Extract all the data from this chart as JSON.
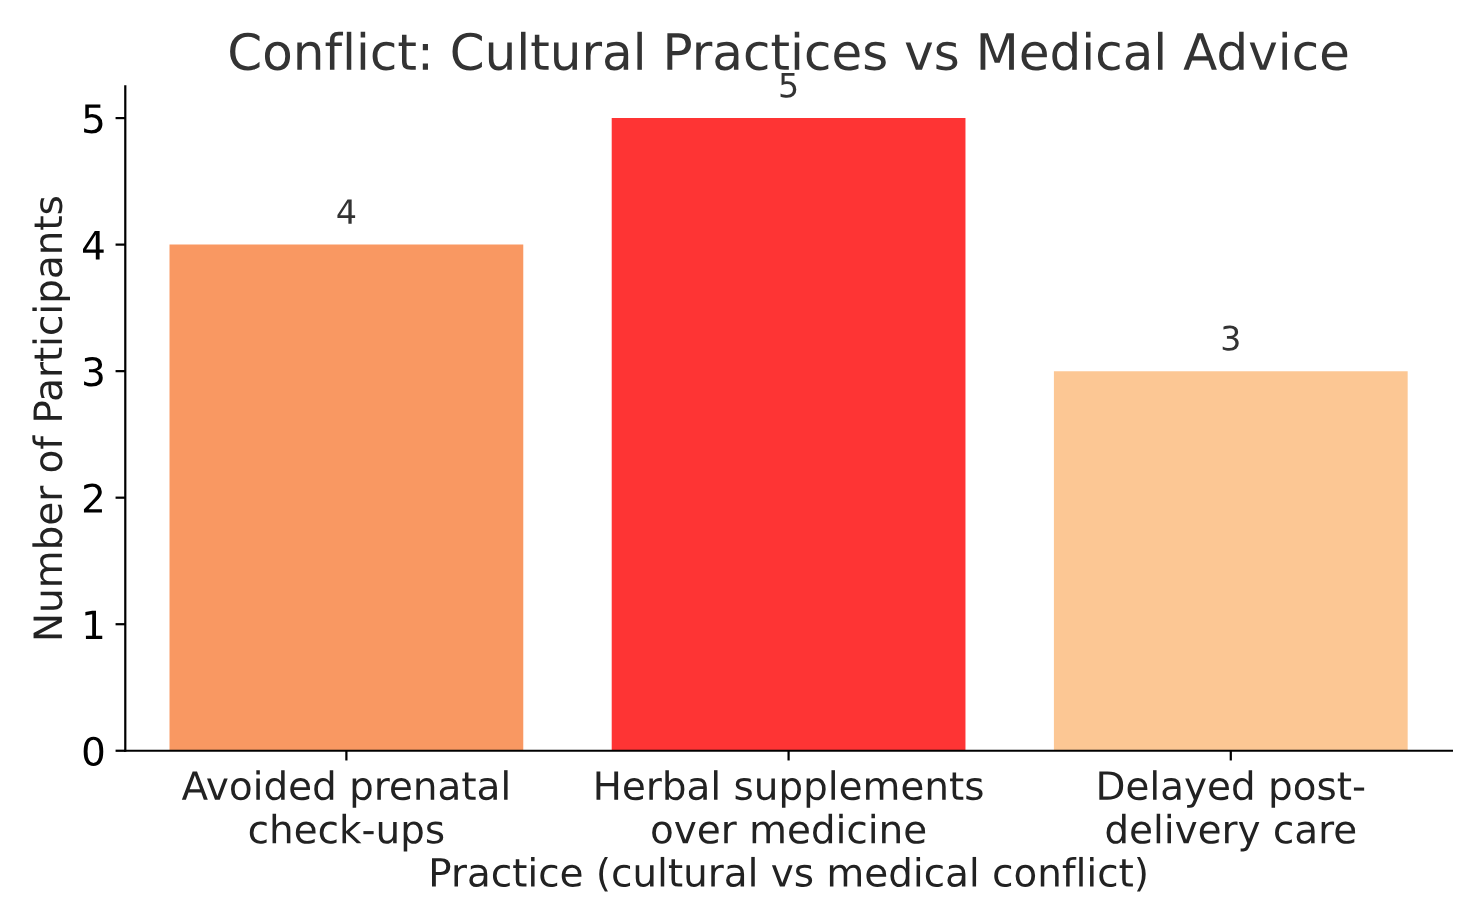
{
  "chart_data": {
    "type": "bar",
    "title": "Conflict: Cultural Practices vs Medical Advice",
    "xlabel": "Practice (cultural vs medical conflict)",
    "ylabel": "Number of Participants",
    "categories": [
      "Avoided prenatal\ncheck-ups",
      "Herbal supplements\nover medicine",
      "Delayed post-\ndelivery care"
    ],
    "values": [
      4,
      5,
      3
    ],
    "colors": [
      "#f99862",
      "#fe3434",
      "#fcc794"
    ],
    "ylim": [
      0,
      5.25
    ],
    "yticks": [
      0,
      1,
      2,
      3,
      4,
      5
    ],
    "data_labels": true,
    "grid": false
  }
}
